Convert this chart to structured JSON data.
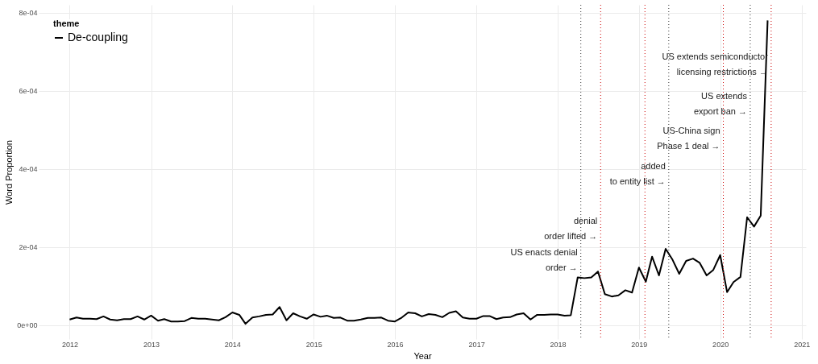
{
  "chart_data": {
    "type": "line",
    "xlabel": "Year",
    "ylabel": "Word Proportion",
    "legend_title": "theme",
    "legend": "top left",
    "grid": true,
    "line_style": "solid",
    "marker": "none",
    "x": [
      "2012-01",
      "2012-02",
      "2012-03",
      "2012-04",
      "2012-05",
      "2012-06",
      "2012-07",
      "2012-08",
      "2012-09",
      "2012-10",
      "2012-11",
      "2012-12",
      "2013-01",
      "2013-02",
      "2013-03",
      "2013-04",
      "2013-05",
      "2013-06",
      "2013-07",
      "2013-08",
      "2013-09",
      "2013-10",
      "2013-11",
      "2013-12",
      "2014-01",
      "2014-02",
      "2014-03",
      "2014-04",
      "2014-05",
      "2014-06",
      "2014-07",
      "2014-08",
      "2014-09",
      "2014-10",
      "2014-11",
      "2014-12",
      "2015-01",
      "2015-02",
      "2015-03",
      "2015-04",
      "2015-05",
      "2015-06",
      "2015-07",
      "2015-08",
      "2015-09",
      "2015-10",
      "2015-11",
      "2015-12",
      "2016-01",
      "2016-02",
      "2016-03",
      "2016-04",
      "2016-05",
      "2016-06",
      "2016-07",
      "2016-08",
      "2016-09",
      "2016-10",
      "2016-11",
      "2016-12",
      "2017-01",
      "2017-02",
      "2017-03",
      "2017-04",
      "2017-05",
      "2017-06",
      "2017-07",
      "2017-08",
      "2017-09",
      "2017-10",
      "2017-11",
      "2017-12",
      "2018-01",
      "2018-02",
      "2018-03",
      "2018-04",
      "2018-05",
      "2018-06",
      "2018-07",
      "2018-08",
      "2018-09",
      "2018-10",
      "2018-11",
      "2018-12",
      "2019-01",
      "2019-02",
      "2019-03",
      "2019-04",
      "2019-05",
      "2019-06",
      "2019-07",
      "2019-08",
      "2019-09",
      "2019-10",
      "2019-11",
      "2019-12",
      "2020-01",
      "2020-02",
      "2020-03",
      "2020-04",
      "2020-05",
      "2020-06",
      "2020-07",
      "2020-08"
    ],
    "series": [
      {
        "name": "De-coupling",
        "color": "#000000",
        "values": [
          1.4e-05,
          1.9e-05,
          1.6e-05,
          1.6e-05,
          1.5e-05,
          2.2e-05,
          1.4e-05,
          1.2e-05,
          1.5e-05,
          1.5e-05,
          2.2e-05,
          1.4e-05,
          2.4e-05,
          1.1e-05,
          1.5e-05,
          9e-06,
          9e-06,
          1e-05,
          1.8e-05,
          1.6e-05,
          1.6e-05,
          1.4e-05,
          1.2e-05,
          2e-05,
          3.2e-05,
          2.6e-05,
          3e-06,
          1.9e-05,
          2.2e-05,
          2.6e-05,
          2.7e-05,
          4.6e-05,
          1.2e-05,
          3e-05,
          2.2e-05,
          1.6e-05,
          2.7e-05,
          2.1e-05,
          2.4e-05,
          1.8e-05,
          1.9e-05,
          1.1e-05,
          1.1e-05,
          1.4e-05,
          1.8e-05,
          1.8e-05,
          1.9e-05,
          1.1e-05,
          9e-06,
          1.9e-05,
          3.2e-05,
          3e-05,
          2.2e-05,
          2.8e-05,
          2.6e-05,
          2e-05,
          3.1e-05,
          3.5e-05,
          1.9e-05,
          1.6e-05,
          1.6e-05,
          2.3e-05,
          2.3e-05,
          1.5e-05,
          1.9e-05,
          2e-05,
          2.7e-05,
          3e-05,
          1.4e-05,
          2.6e-05,
          2.6e-05,
          2.7e-05,
          2.7e-05,
          2.4e-05,
          2.5e-05,
          0.000122,
          0.00012,
          0.000122,
          0.000137,
          7.9e-05,
          7.3e-05,
          7.6e-05,
          8.9e-05,
          8.3e-05,
          0.000147,
          0.000111,
          0.000175,
          0.000127,
          0.000195,
          0.000167,
          0.000131,
          0.000164,
          0.00017,
          0.000159,
          0.000127,
          0.000141,
          0.000179,
          8.4e-05,
          0.00011,
          0.000123,
          0.000276,
          0.000252,
          0.00028,
          0.00078
        ]
      }
    ],
    "xlim": [
      "2011-08-15",
      "2021-01-20"
    ],
    "xticks": [
      "2012",
      "2013",
      "2014",
      "2015",
      "2016",
      "2017",
      "2018",
      "2019",
      "2020",
      "2021"
    ],
    "ylim": [
      -3.6e-05,
      0.00082
    ],
    "yticks": [
      {
        "value": 0,
        "label": "0e+00"
      },
      {
        "value": 0.0002,
        "label": "2e-04"
      },
      {
        "value": 0.0004,
        "label": "4e-04"
      },
      {
        "value": 0.0006,
        "label": "6e-04"
      },
      {
        "value": 0.0008,
        "label": "8e-04"
      }
    ],
    "ref_lines": [
      {
        "axis": "x",
        "value": "2018-04-15",
        "color": "#333333",
        "line_style": "dotted"
      },
      {
        "axis": "x",
        "value": "2018-07-13",
        "color": "#cc0000",
        "line_style": "dotted"
      },
      {
        "axis": "x",
        "value": "2019-01-28",
        "color": "#cc0000",
        "line_style": "dotted"
      },
      {
        "axis": "x",
        "value": "2019-05-15",
        "color": "#333333",
        "line_style": "dotted"
      },
      {
        "axis": "x",
        "value": "2020-01-15",
        "color": "#cc0000",
        "line_style": "dotted"
      },
      {
        "axis": "x",
        "value": "2020-05-15",
        "color": "#333333",
        "line_style": "dotted"
      },
      {
        "axis": "x",
        "value": "2020-08-17",
        "color": "#cc0000",
        "line_style": "dotted"
      }
    ],
    "annotations": [
      {
        "text": "US enacts denial\norder →",
        "x": "2018-04-15",
        "y": 0.000175
      },
      {
        "text": "denial\norder lifted →",
        "x": "2018-07-13",
        "y": 0.000255
      },
      {
        "text": "added\nto entity list →",
        "x": "2019-05-15",
        "y": 0.000395
      },
      {
        "text": "US-China sign\nPhase 1 deal →",
        "x": "2020-01-15",
        "y": 0.000485
      },
      {
        "text": "US extends\nexport ban →",
        "x": "2020-05-15",
        "y": 0.000575
      },
      {
        "text": "US extends semiconductor\nlicensing restrictions →",
        "x": "2020-08-17",
        "y": 0.000675
      }
    ]
  }
}
